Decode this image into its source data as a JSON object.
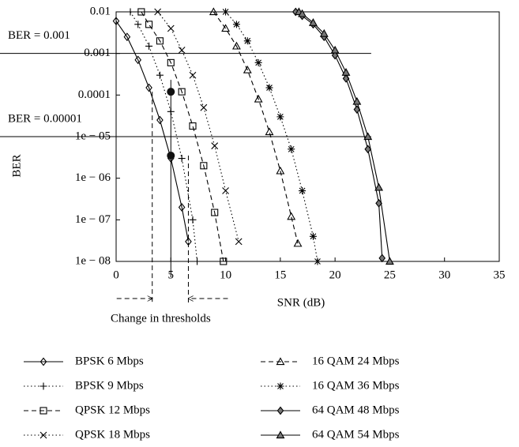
{
  "chart_data": {
    "type": "line",
    "xlabel": "SNR (dB)",
    "ylabel": "BER",
    "xlim": [
      0,
      35
    ],
    "xticks": [
      0,
      5,
      10,
      15,
      20,
      25,
      30,
      35
    ],
    "ylim": [
      1e-08,
      0.01
    ],
    "log_y": true,
    "yticks": [
      0.01,
      0.001,
      0.0001,
      {
        "value": 1e-05,
        "label": "1e − 05"
      },
      {
        "value": 1e-06,
        "label": "1e − 06"
      },
      {
        "value": 1e-07,
        "label": "1e − 07"
      },
      {
        "value": 1e-08,
        "label": "1e − 08"
      }
    ],
    "reference_lines": [
      {
        "label": "BER = 0.001",
        "value": 0.001,
        "x_end": 23.3
      },
      {
        "label": "BER = 0.00001",
        "value": 1e-05,
        "x_end": 23.3
      }
    ],
    "operating_point": {
      "x": 5,
      "values": [
        0.00012,
        3.5e-06
      ]
    },
    "thresholds": {
      "label": "Change in thresholds",
      "x": [
        3.3,
        6.6
      ]
    },
    "series": [
      {
        "name": "BPSK 6 Mbps",
        "color": "#000000",
        "marker": "diamond",
        "fill": "none",
        "dash": "solid",
        "x": [
          0,
          1,
          2,
          3,
          4,
          5,
          6,
          6.6
        ],
        "values": [
          0.006,
          0.0025,
          0.0007,
          0.00015,
          2.5e-05,
          3e-06,
          2e-07,
          3e-08
        ]
      },
      {
        "name": "BPSK 9 Mbps",
        "color": "#000000",
        "marker": "plus",
        "fill": "none",
        "dash": "dotted",
        "x": [
          1.3,
          2,
          3,
          4,
          5,
          6,
          7,
          7.4
        ],
        "values": [
          0.01,
          0.005,
          0.0015,
          0.0003,
          4e-05,
          3e-06,
          1e-07,
          1e-08
        ]
      },
      {
        "name": "QPSK 12 Mbps",
        "color": "#000000",
        "marker": "square",
        "fill": "none",
        "dash": "dashed",
        "x": [
          2.3,
          3,
          4,
          5,
          6,
          7,
          8,
          9,
          9.8
        ],
        "values": [
          0.01,
          0.005,
          0.002,
          0.0006,
          0.00012,
          1.8e-05,
          2e-06,
          1.5e-07,
          1e-08
        ]
      },
      {
        "name": "QPSK 18 Mbps",
        "color": "#000000",
        "marker": "cross",
        "fill": "none",
        "dash": "dotted",
        "x": [
          3.8,
          5,
          6,
          7,
          8,
          9,
          10,
          11.2
        ],
        "values": [
          0.01,
          0.004,
          0.0012,
          0.0003,
          5e-05,
          6e-06,
          5e-07,
          3e-08
        ]
      },
      {
        "name": "16 QAM 24 Mbps",
        "color": "#000000",
        "marker": "triangle",
        "fill": "none",
        "dash": "dashed",
        "x": [
          8.9,
          10,
          11,
          12,
          13,
          14,
          15,
          16,
          16.6
        ],
        "values": [
          0.01,
          0.004,
          0.0015,
          0.0004,
          8e-05,
          1.3e-05,
          1.5e-06,
          1.2e-07,
          2.7e-08
        ]
      },
      {
        "name": "16 QAM 36 Mbps",
        "color": "#000000",
        "marker": "star",
        "fill": "none",
        "dash": "dotted",
        "x": [
          10,
          11,
          12,
          13,
          14,
          15,
          16,
          17,
          18,
          18.4
        ],
        "values": [
          0.01,
          0.005,
          0.002,
          0.0006,
          0.00015,
          3e-05,
          5e-06,
          5e-07,
          4e-08,
          1e-08
        ]
      },
      {
        "name": "64 QAM 48 Mbps",
        "color": "#000000",
        "marker": "diamond",
        "fill": "#777777",
        "dash": "solid",
        "x": [
          16.4,
          17,
          18,
          19,
          20,
          21,
          22,
          23,
          24,
          24.3
        ],
        "values": [
          0.01,
          0.008,
          0.005,
          0.0025,
          0.0009,
          0.00025,
          4.5e-05,
          5e-06,
          2.5e-07,
          1.2e-08
        ]
      },
      {
        "name": "64 QAM 54 Mbps",
        "color": "#000000",
        "marker": "triangle",
        "fill": "#777777",
        "dash": "solid",
        "x": [
          16.7,
          17,
          18,
          19,
          20,
          21,
          22,
          23,
          24,
          25
        ],
        "values": [
          0.01,
          0.009,
          0.0055,
          0.003,
          0.0012,
          0.00035,
          7e-05,
          1e-05,
          6e-07,
          1e-08
        ]
      }
    ]
  }
}
